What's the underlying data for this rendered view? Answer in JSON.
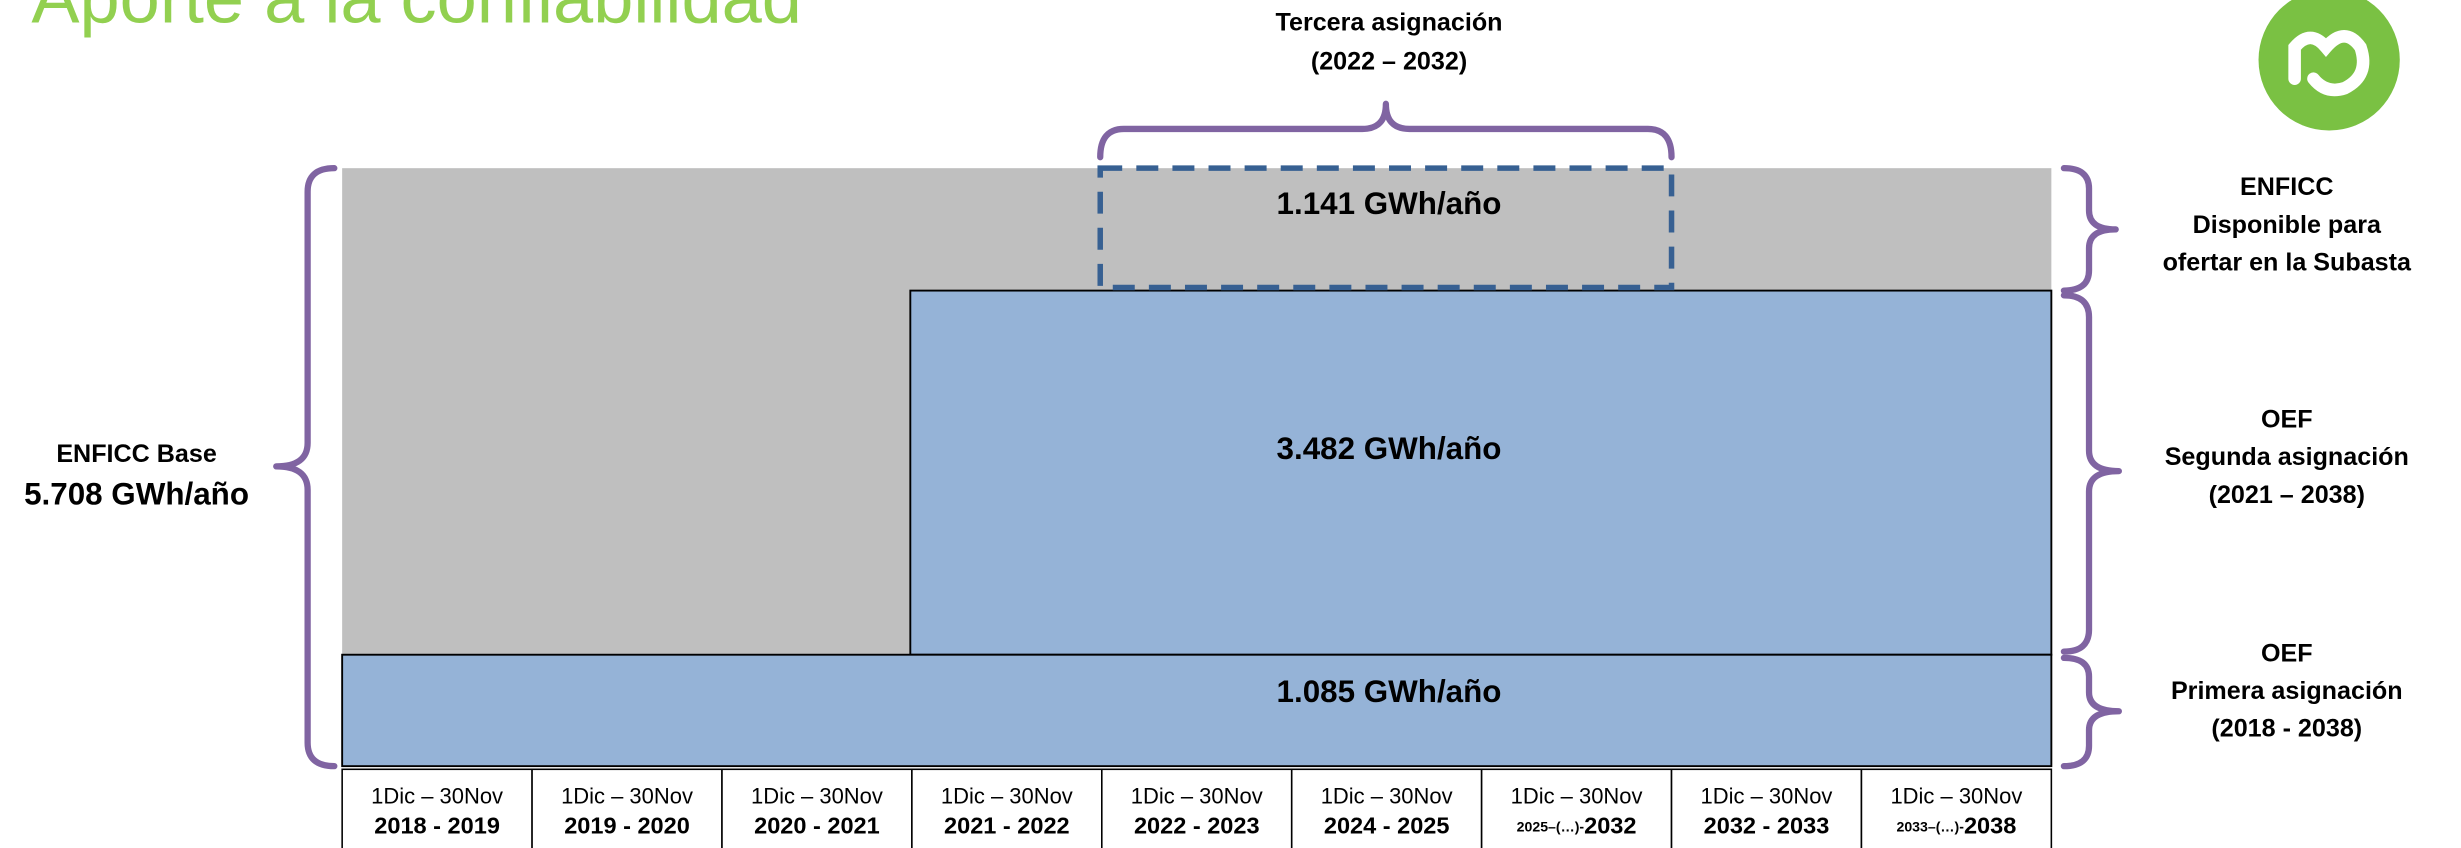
{
  "title": "Aporte a la confiabilidad",
  "third_assignment": {
    "line1": "Tercera asignación",
    "line2": "(2022 – 2032)",
    "value": "1.141 GWh/año"
  },
  "second_assignment": {
    "value": "3.482 GWh/año"
  },
  "first_assignment": {
    "value": "1.085 GWh/año"
  },
  "base": {
    "label": "ENFICC Base",
    "value": "5.708 GWh/año"
  },
  "right_labels": [
    {
      "line1": "ENFICC",
      "line2": "Disponible para",
      "line3": "ofertar en la Subasta"
    },
    {
      "line1": "OEF",
      "line2": "Segunda asignación",
      "line3": "(2021 – 2038)"
    },
    {
      "line1": "OEF",
      "line2": "Primera asignación",
      "line3": "(2018 - 2038)"
    }
  ],
  "columns": [
    {
      "dates": "1Dic – 30Nov",
      "years": "2018 - 2019"
    },
    {
      "dates": "1Dic – 30Nov",
      "years": "2019 - 2020"
    },
    {
      "dates": "1Dic – 30Nov",
      "years": "2020 - 2021"
    },
    {
      "dates": "1Dic – 30Nov",
      "years": "2021 - 2022"
    },
    {
      "dates": "1Dic – 30Nov",
      "years": "2022 - 2023"
    },
    {
      "dates": "1Dic – 30Nov",
      "years": "2024 - 2025"
    },
    {
      "dates": "1Dic – 30Nov",
      "years_prefix": "2025–(…)-",
      "years": "2032"
    },
    {
      "dates": "1Dic – 30Nov",
      "years": "2032 - 2033"
    },
    {
      "dates": "1Dic – 30Nov",
      "years_prefix": "2033–(…)-",
      "years": "2038"
    }
  ]
}
